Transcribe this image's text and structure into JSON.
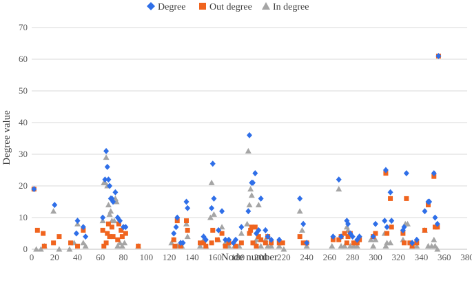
{
  "chart_data": {
    "type": "scatter",
    "xlabel": "Node number",
    "ylabel": "Degree value",
    "xlim": [
      0,
      380
    ],
    "ylim": [
      0,
      70
    ],
    "x_ticks": [
      0,
      20,
      40,
      60,
      80,
      100,
      120,
      140,
      160,
      180,
      200,
      220,
      240,
      260,
      280,
      300,
      320,
      340,
      360,
      380
    ],
    "y_ticks": [
      0,
      10,
      20,
      30,
      40,
      50,
      60,
      70
    ],
    "grid": "horizontal",
    "legend_position": "top-right",
    "series": [
      {
        "name": "Degree",
        "marker": "diamond",
        "color": "#2f6fe8",
        "points": [
          [
            2,
            19
          ],
          [
            20,
            14
          ],
          [
            39,
            5
          ],
          [
            40,
            9
          ],
          [
            45,
            7
          ],
          [
            47,
            4
          ],
          [
            62,
            10
          ],
          [
            64,
            22
          ],
          [
            65,
            31
          ],
          [
            66,
            26
          ],
          [
            67,
            22
          ],
          [
            68,
            20
          ],
          [
            69,
            16
          ],
          [
            70,
            16
          ],
          [
            71,
            15
          ],
          [
            73,
            18
          ],
          [
            75,
            10
          ],
          [
            77,
            9
          ],
          [
            80,
            7
          ],
          [
            82,
            7
          ],
          [
            124,
            5
          ],
          [
            126,
            7
          ],
          [
            127,
            10
          ],
          [
            130,
            2
          ],
          [
            132,
            2
          ],
          [
            135,
            15
          ],
          [
            136,
            13
          ],
          [
            150,
            4
          ],
          [
            152,
            3
          ],
          [
            157,
            13
          ],
          [
            158,
            27
          ],
          [
            159,
            16
          ],
          [
            163,
            6
          ],
          [
            166,
            12
          ],
          [
            169,
            3
          ],
          [
            172,
            3
          ],
          [
            176,
            2
          ],
          [
            178,
            3
          ],
          [
            183,
            7
          ],
          [
            189,
            12
          ],
          [
            190,
            36
          ],
          [
            192,
            21
          ],
          [
            193,
            21
          ],
          [
            195,
            24
          ],
          [
            196,
            5
          ],
          [
            198,
            6
          ],
          [
            200,
            16
          ],
          [
            204,
            6
          ],
          [
            206,
            4
          ],
          [
            209,
            3
          ],
          [
            216,
            3
          ],
          [
            234,
            16
          ],
          [
            237,
            8
          ],
          [
            240,
            2
          ],
          [
            263,
            4
          ],
          [
            268,
            22
          ],
          [
            270,
            4
          ],
          [
            275,
            9
          ],
          [
            276,
            8
          ],
          [
            278,
            5
          ],
          [
            280,
            4
          ],
          [
            284,
            3
          ],
          [
            286,
            4
          ],
          [
            298,
            4
          ],
          [
            300,
            8
          ],
          [
            308,
            9
          ],
          [
            309,
            25
          ],
          [
            310,
            7
          ],
          [
            313,
            18
          ],
          [
            314,
            9
          ],
          [
            324,
            6
          ],
          [
            325,
            7
          ],
          [
            327,
            24
          ],
          [
            332,
            2
          ],
          [
            336,
            3
          ],
          [
            343,
            12
          ],
          [
            346,
            15
          ],
          [
            347,
            15
          ],
          [
            351,
            24
          ],
          [
            352,
            10
          ],
          [
            354,
            8
          ],
          [
            355,
            61
          ]
        ]
      },
      {
        "name": "Out degree",
        "marker": "square",
        "color": "#f0641e",
        "points": [
          [
            2,
            19
          ],
          [
            5,
            6
          ],
          [
            10,
            5
          ],
          [
            11,
            1
          ],
          [
            19,
            2
          ],
          [
            24,
            4
          ],
          [
            34,
            2
          ],
          [
            40,
            1
          ],
          [
            45,
            6
          ],
          [
            62,
            6
          ],
          [
            63,
            1
          ],
          [
            65,
            2
          ],
          [
            66,
            5
          ],
          [
            67,
            8
          ],
          [
            68,
            4
          ],
          [
            70,
            7
          ],
          [
            71,
            4
          ],
          [
            75,
            3
          ],
          [
            76,
            8
          ],
          [
            78,
            6
          ],
          [
            79,
            4
          ],
          [
            82,
            5
          ],
          [
            93,
            1
          ],
          [
            124,
            3
          ],
          [
            125,
            1
          ],
          [
            127,
            9
          ],
          [
            130,
            1
          ],
          [
            135,
            9
          ],
          [
            136,
            6
          ],
          [
            147,
            2
          ],
          [
            150,
            2
          ],
          [
            152,
            1
          ],
          [
            157,
            2
          ],
          [
            158,
            6
          ],
          [
            162,
            3
          ],
          [
            166,
            5
          ],
          [
            169,
            1
          ],
          [
            172,
            2
          ],
          [
            178,
            1
          ],
          [
            183,
            2
          ],
          [
            190,
            5
          ],
          [
            191,
            6
          ],
          [
            192,
            7
          ],
          [
            193,
            2
          ],
          [
            195,
            7
          ],
          [
            196,
            1
          ],
          [
            198,
            4
          ],
          [
            200,
            3
          ],
          [
            204,
            2
          ],
          [
            206,
            4
          ],
          [
            209,
            2
          ],
          [
            216,
            2
          ],
          [
            219,
            2
          ],
          [
            234,
            4
          ],
          [
            237,
            2
          ],
          [
            240,
            2
          ],
          [
            263,
            3
          ],
          [
            268,
            3
          ],
          [
            270,
            4
          ],
          [
            273,
            5
          ],
          [
            275,
            2
          ],
          [
            276,
            4
          ],
          [
            278,
            5
          ],
          [
            281,
            2
          ],
          [
            284,
            2
          ],
          [
            286,
            3
          ],
          [
            298,
            4
          ],
          [
            300,
            5
          ],
          [
            309,
            24
          ],
          [
            310,
            5
          ],
          [
            313,
            16
          ],
          [
            314,
            7
          ],
          [
            324,
            5
          ],
          [
            325,
            2
          ],
          [
            327,
            16
          ],
          [
            330,
            2
          ],
          [
            332,
            1
          ],
          [
            336,
            2
          ],
          [
            343,
            6
          ],
          [
            346,
            14
          ],
          [
            351,
            23
          ],
          [
            352,
            7
          ],
          [
            354,
            7
          ],
          [
            355,
            61
          ]
        ]
      },
      {
        "name": "In degree",
        "marker": "triangle",
        "color": "#a5a5a5",
        "points": [
          [
            4,
            0
          ],
          [
            8,
            0
          ],
          [
            11,
            1
          ],
          [
            19,
            12
          ],
          [
            24,
            0
          ],
          [
            33,
            0
          ],
          [
            37,
            2
          ],
          [
            40,
            8
          ],
          [
            45,
            2
          ],
          [
            47,
            1
          ],
          [
            62,
            9
          ],
          [
            63,
            21
          ],
          [
            64,
            21
          ],
          [
            65,
            29
          ],
          [
            66,
            20
          ],
          [
            67,
            14
          ],
          [
            68,
            11
          ],
          [
            69,
            12
          ],
          [
            70,
            9
          ],
          [
            72,
            9
          ],
          [
            73,
            16
          ],
          [
            74,
            15
          ],
          [
            75,
            1
          ],
          [
            77,
            2
          ],
          [
            79,
            1
          ],
          [
            81,
            2
          ],
          [
            93,
            1
          ],
          [
            122,
            2
          ],
          [
            124,
            3
          ],
          [
            127,
            1
          ],
          [
            131,
            1
          ],
          [
            135,
            8
          ],
          [
            136,
            4
          ],
          [
            147,
            1
          ],
          [
            150,
            3
          ],
          [
            152,
            1
          ],
          [
            156,
            10
          ],
          [
            157,
            21
          ],
          [
            159,
            11
          ],
          [
            163,
            3
          ],
          [
            166,
            7
          ],
          [
            169,
            2
          ],
          [
            172,
            1
          ],
          [
            177,
            1
          ],
          [
            181,
            1
          ],
          [
            183,
            5
          ],
          [
            188,
            8
          ],
          [
            189,
            31
          ],
          [
            190,
            14
          ],
          [
            191,
            19
          ],
          [
            192,
            17
          ],
          [
            195,
            2
          ],
          [
            196,
            3
          ],
          [
            198,
            14
          ],
          [
            200,
            1
          ],
          [
            204,
            3
          ],
          [
            206,
            1
          ],
          [
            209,
            1
          ],
          [
            216,
            1
          ],
          [
            220,
            0
          ],
          [
            234,
            12
          ],
          [
            236,
            6
          ],
          [
            240,
            1
          ],
          [
            262,
            1
          ],
          [
            268,
            19
          ],
          [
            270,
            1
          ],
          [
            273,
            1
          ],
          [
            275,
            7
          ],
          [
            276,
            6
          ],
          [
            278,
            1
          ],
          [
            281,
            1
          ],
          [
            284,
            1
          ],
          [
            296,
            3
          ],
          [
            298,
            1
          ],
          [
            300,
            3
          ],
          [
            308,
            5
          ],
          [
            309,
            1
          ],
          [
            310,
            2
          ],
          [
            313,
            2
          ],
          [
            324,
            3
          ],
          [
            326,
            8
          ],
          [
            328,
            8
          ],
          [
            332,
            1
          ],
          [
            336,
            1
          ],
          [
            343,
            6
          ],
          [
            346,
            1
          ],
          [
            349,
            1
          ],
          [
            351,
            3
          ],
          [
            352,
            1
          ],
          [
            354,
            0
          ]
        ]
      }
    ]
  }
}
